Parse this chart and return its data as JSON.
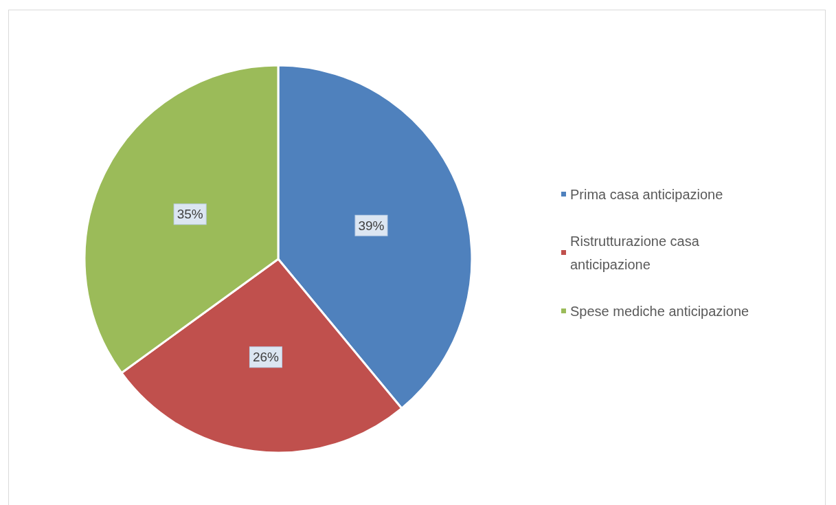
{
  "chart_data": {
    "type": "pie",
    "categories": [
      "Prima casa anticipazione",
      "Ristrutturazione casa anticipazione",
      "Spese mediche anticipazione"
    ],
    "values": [
      39,
      26,
      35
    ],
    "colors": [
      "#4f81bd",
      "#c0504d",
      "#9bbb59"
    ],
    "value_labels": [
      "39%",
      "26%",
      "35%"
    ],
    "legend": "right"
  }
}
